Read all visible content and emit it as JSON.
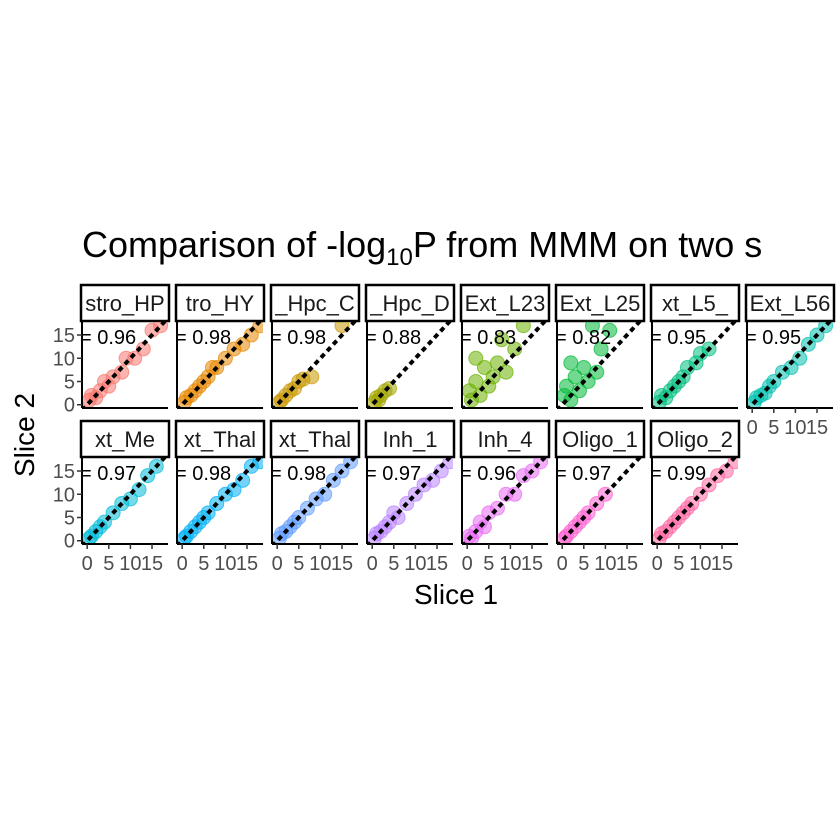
{
  "title": [
    "Comparison of -log",
    "10",
    "P from MMM on two s"
  ],
  "x_label": "Slice 1",
  "y_label": "Slice 2",
  "chart_data": [
    {
      "type": "scatter",
      "title": "stro_HP",
      "annotation": "= 0.96",
      "color": "#F8766D",
      "xlim": [
        -1.2,
        18.7
      ],
      "ylim": [
        -0.7,
        17.8
      ],
      "yticks": [
        0,
        5,
        10,
        15
      ],
      "x": [
        0.5,
        1,
        2,
        3,
        4,
        5,
        6,
        8,
        9,
        11,
        13,
        15,
        17
      ],
      "y": [
        1,
        2,
        1.5,
        3,
        5,
        4,
        6,
        7,
        10,
        10,
        12,
        16,
        17
      ]
    },
    {
      "type": "scatter",
      "title": "tro_HY",
      "annotation": "= 0.98",
      "color": "#E58700",
      "xlim": [
        -1.2,
        18.7
      ],
      "ylim": [
        -0.7,
        17.8
      ],
      "x": [
        0.5,
        1,
        2,
        3,
        4,
        5,
        6,
        7,
        8,
        10,
        12,
        14,
        16,
        18
      ],
      "y": [
        0.5,
        1.5,
        2,
        3,
        4,
        5,
        6,
        8,
        8,
        10,
        12,
        13,
        15,
        17
      ]
    },
    {
      "type": "scatter",
      "title": "_Hpc_C",
      "annotation": "= 0.98",
      "color": "#C99800",
      "xlim": [
        -1.2,
        18.7
      ],
      "ylim": [
        -0.7,
        17.8
      ],
      "x": [
        0.5,
        1,
        2,
        3,
        4,
        5,
        6,
        8,
        15
      ],
      "y": [
        0.5,
        1,
        2,
        3,
        3.5,
        5,
        5.5,
        6,
        17
      ]
    },
    {
      "type": "scatter",
      "title": "_Hpc_D",
      "annotation": "= 0.88",
      "color": "#A3A500",
      "xlim": [
        -1.2,
        18.7
      ],
      "ylim": [
        -0.7,
        17.8
      ],
      "x": [
        0.5,
        1,
        1.5,
        2,
        3,
        4
      ],
      "y": [
        0.5,
        1.5,
        1,
        2,
        3,
        3.5
      ]
    },
    {
      "type": "scatter",
      "title": "Ext_L23",
      "annotation": "= 0.83",
      "color": "#6BB100",
      "xlim": [
        -1.2,
        18.7
      ],
      "ylim": [
        -0.7,
        17.8
      ],
      "x": [
        0.5,
        1,
        2,
        3,
        4,
        5,
        6,
        7,
        9,
        11,
        13,
        2,
        8
      ],
      "y": [
        3,
        1,
        5,
        2,
        8,
        4,
        6,
        9,
        7,
        12,
        17,
        10,
        14
      ]
    },
    {
      "type": "scatter",
      "title": "Ext_L25",
      "annotation": "= 0.82",
      "color": "#00BA38",
      "xlim": [
        -1.2,
        18.7
      ],
      "ylim": [
        -0.7,
        17.8
      ],
      "x": [
        0.5,
        1,
        2,
        3,
        4,
        5,
        6,
        8,
        9,
        11,
        2,
        7
      ],
      "y": [
        2,
        4,
        1,
        6,
        3,
        8,
        5,
        7,
        12,
        16,
        9,
        17
      ]
    },
    {
      "type": "scatter",
      "title": "xt_L5_",
      "annotation": "= 0.95",
      "color": "#00BF7D",
      "xlim": [
        -1.2,
        18.7
      ],
      "ylim": [
        -0.7,
        17.8
      ],
      "x": [
        0.5,
        1,
        2,
        3,
        4,
        5,
        6,
        7,
        9,
        10,
        12
      ],
      "y": [
        0.5,
        2,
        1.5,
        3,
        4,
        5,
        6,
        8,
        9,
        11,
        12
      ]
    },
    {
      "type": "scatter",
      "title": "Ext_L56",
      "annotation": "= 0.95",
      "color": "#00C0AF",
      "xlim": [
        -1.2,
        18.7
      ],
      "ylim": [
        -0.7,
        17.8
      ],
      "xticks": [
        0,
        5,
        10,
        15
      ],
      "x": [
        0.5,
        1,
        2,
        3,
        4,
        5,
        7,
        9,
        11,
        13,
        15,
        17
      ],
      "y": [
        0.5,
        1.5,
        2,
        2.5,
        4,
        5,
        7,
        8,
        10,
        13,
        15,
        17
      ]
    },
    {
      "type": "scatter",
      "title": "xt_Me",
      "annotation": "= 0.97",
      "color": "#00BCD8",
      "xlim": [
        -1.2,
        18.7
      ],
      "ylim": [
        -0.7,
        17.8
      ],
      "yticks": [
        0,
        5,
        10,
        15
      ],
      "xticks": [
        0,
        5,
        10,
        15
      ],
      "x": [
        0.5,
        1,
        2,
        3,
        4,
        6,
        8,
        10,
        12,
        14,
        16
      ],
      "y": [
        0.5,
        1,
        2,
        3,
        4,
        6,
        8,
        9,
        11,
        14,
        16
      ]
    },
    {
      "type": "scatter",
      "title": "xt_Thal",
      "annotation": "= 0.98",
      "color": "#00B0F6",
      "xlim": [
        -1.2,
        18.7
      ],
      "ylim": [
        -0.7,
        17.8
      ],
      "xticks": [
        0,
        5,
        10,
        15
      ],
      "x": [
        0.5,
        1,
        2,
        3,
        4,
        5,
        6,
        8,
        10,
        12,
        14,
        16,
        18
      ],
      "y": [
        0.5,
        1,
        2,
        3,
        4,
        5,
        6,
        8,
        10,
        11,
        13,
        16,
        17
      ]
    },
    {
      "type": "scatter",
      "title": "xt_Thal",
      "annotation": "= 0.98",
      "color": "#619CFF",
      "xlim": [
        -1.2,
        18.7
      ],
      "ylim": [
        -0.7,
        17.8
      ],
      "xticks": [
        0,
        5,
        10,
        15
      ],
      "x": [
        0.5,
        1,
        2,
        3,
        4,
        5,
        7,
        9,
        11,
        13,
        15,
        17
      ],
      "y": [
        0.5,
        1.5,
        2,
        3,
        4,
        5,
        7,
        9,
        10,
        13,
        15,
        17
      ]
    },
    {
      "type": "scatter",
      "title": "Inh_1",
      "annotation": "= 0.97",
      "color": "#B983FF",
      "xlim": [
        -1.2,
        18.7
      ],
      "ylim": [
        -0.7,
        17.8
      ],
      "xticks": [
        0,
        5,
        10,
        15
      ],
      "x": [
        0.5,
        1,
        2,
        3,
        4,
        5,
        6,
        8,
        10,
        12,
        14,
        16,
        18
      ],
      "y": [
        0.5,
        1.5,
        2,
        3,
        4,
        6,
        5,
        8,
        10,
        12,
        13,
        15,
        17
      ]
    },
    {
      "type": "scatter",
      "title": "Inh_4",
      "annotation": "= 0.96",
      "color": "#E76BF3",
      "xlim": [
        -1.2,
        18.7
      ],
      "ylim": [
        -0.7,
        17.8
      ],
      "xticks": [
        0,
        5,
        10,
        15
      ],
      "x": [
        0.5,
        1,
        2,
        3,
        4,
        5,
        7,
        9,
        11,
        13,
        15,
        17
      ],
      "y": [
        1,
        0.5,
        2,
        4,
        3,
        6,
        7,
        10,
        10,
        14,
        15,
        17
      ]
    },
    {
      "type": "scatter",
      "title": "Oligo_1",
      "annotation": "= 0.97",
      "color": "#FD61D1",
      "xlim": [
        -1.2,
        18.7
      ],
      "ylim": [
        -0.7,
        17.8
      ],
      "xticks": [
        0,
        5,
        10,
        15
      ],
      "x": [
        0.5,
        1,
        2,
        3,
        4,
        5,
        6,
        8,
        10
      ],
      "y": [
        0.5,
        1,
        2,
        3,
        4,
        5,
        6,
        8,
        10
      ]
    },
    {
      "type": "scatter",
      "title": "Oligo_2",
      "annotation": "= 0.99",
      "color": "#FF67A4",
      "xlim": [
        -1.2,
        18.7
      ],
      "ylim": [
        -0.7,
        17.8
      ],
      "xticks": [
        0,
        5,
        10,
        15
      ],
      "x": [
        0.5,
        1,
        2,
        3,
        4,
        5,
        6,
        7,
        8,
        10,
        12,
        14,
        16,
        18
      ],
      "y": [
        0.5,
        1.5,
        2,
        3,
        4,
        5,
        6,
        7,
        8,
        10,
        12,
        14,
        15,
        17
      ]
    }
  ]
}
